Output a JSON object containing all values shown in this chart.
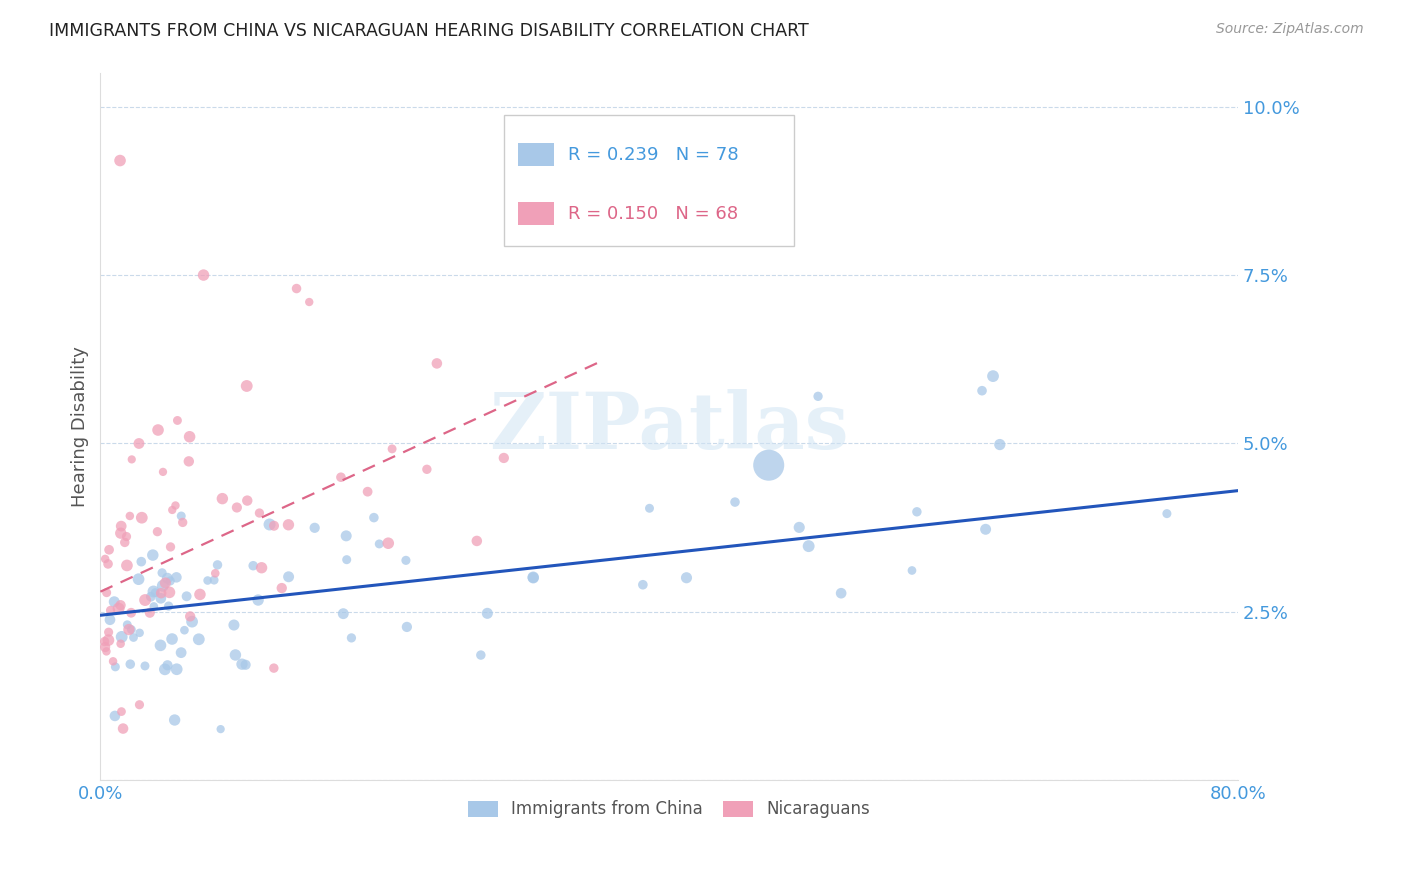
{
  "title": "IMMIGRANTS FROM CHINA VS NICARAGUAN HEARING DISABILITY CORRELATION CHART",
  "source": "Source: ZipAtlas.com",
  "ylabel": "Hearing Disability",
  "watermark": "ZIPatlas",
  "xlim": [
    0.0,
    0.8
  ],
  "ylim": [
    0.0,
    0.105
  ],
  "yticks": [
    0.0,
    0.025,
    0.05,
    0.075,
    0.1
  ],
  "yticklabels": [
    "",
    "2.5%",
    "5.0%",
    "7.5%",
    "10.0%"
  ],
  "xticks": [
    0.0,
    0.1,
    0.2,
    0.3,
    0.4,
    0.5,
    0.6,
    0.7,
    0.8
  ],
  "xticklabels": [
    "0.0%",
    "",
    "",
    "",
    "",
    "",
    "",
    "",
    "80.0%"
  ],
  "legend_blue_r": "0.239",
  "legend_blue_n": "78",
  "legend_pink_r": "0.150",
  "legend_pink_n": "68",
  "blue_color": "#A8C8E8",
  "pink_color": "#F0A0B8",
  "blue_line_color": "#2255BB",
  "pink_line_color": "#DD6688",
  "grid_color": "#CADAEA",
  "title_color": "#222222",
  "axis_label_color": "#555555",
  "tick_color": "#4499DD",
  "blue_line_x0": 0.0,
  "blue_line_y0": 0.0245,
  "blue_line_x1": 0.8,
  "blue_line_y1": 0.043,
  "pink_line_x0": 0.0,
  "pink_line_y0": 0.028,
  "pink_line_x1": 0.35,
  "pink_line_y1": 0.062
}
